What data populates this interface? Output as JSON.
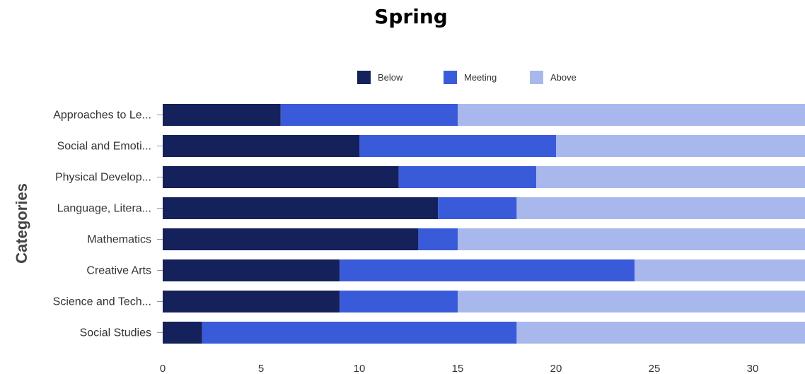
{
  "chart_data": {
    "type": "bar",
    "orientation": "horizontal",
    "stacked": true,
    "title": "Spring",
    "xlabel": "",
    "ylabel": "Categories",
    "xlim": [
      0,
      32.7
    ],
    "xticks": [
      0,
      5,
      10,
      15,
      20,
      25,
      30
    ],
    "legend": "top",
    "categories": [
      "Approaches to Le...",
      "Social and Emoti...",
      "Physical Develop...",
      "Language, Litera...",
      "Mathematics",
      "Creative Arts",
      "Science and Tech...",
      "Social Studies"
    ],
    "series": [
      {
        "name": "Below",
        "color": "#14215a",
        "values": [
          6,
          10,
          12,
          14,
          13,
          9,
          9,
          2
        ]
      },
      {
        "name": "Meeting",
        "color": "#3a5bd9",
        "values": [
          9,
          10,
          7,
          4,
          2,
          15,
          6,
          16
        ]
      },
      {
        "name": "Above",
        "color": "#a9b8ec",
        "values": [
          17.7,
          12.7,
          13.7,
          14.7,
          17.7,
          8.7,
          17.7,
          14.7
        ]
      }
    ]
  }
}
